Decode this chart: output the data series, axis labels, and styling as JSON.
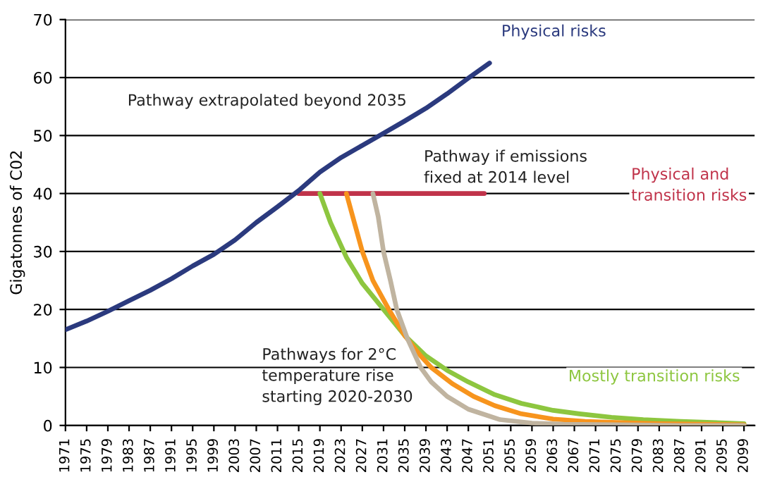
{
  "chart_data": {
    "type": "line",
    "ylabel": "Gigatonnes of C02",
    "xlim": [
      1971,
      2101
    ],
    "ylim": [
      0,
      70
    ],
    "xticks": [
      1971,
      1975,
      1979,
      1983,
      1987,
      1991,
      1995,
      1999,
      2003,
      2007,
      2011,
      2015,
      2019,
      2023,
      2027,
      2031,
      2035,
      2039,
      2043,
      2047,
      2051,
      2055,
      2059,
      2063,
      2067,
      2071,
      2075,
      2079,
      2083,
      2087,
      2091,
      2095,
      2099
    ],
    "yticks": [
      0,
      10,
      20,
      30,
      40,
      50,
      60,
      70
    ],
    "grid": "y",
    "legend": false,
    "marker": "none",
    "line_style": "solid",
    "series": [
      {
        "name": "Physical risks",
        "color": "#2b3a7e",
        "x": [
          1971,
          1975,
          1979,
          1983,
          1987,
          1991,
          1995,
          1999,
          2003,
          2007,
          2011,
          2015,
          2019,
          2023,
          2027,
          2031,
          2035,
          2039,
          2043,
          2047,
          2051
        ],
        "values": [
          16.5,
          18,
          19.7,
          21.5,
          23.3,
          25.3,
          27.5,
          29.5,
          32,
          35,
          37.7,
          40.5,
          43.7,
          46.2,
          48.3,
          50.4,
          52.5,
          54.7,
          57.2,
          59.9,
          62.5
        ]
      },
      {
        "name": "Physical and\ntransition risks",
        "color": "#c0334a",
        "x": [
          2015,
          2050
        ],
        "values": [
          40,
          40
        ]
      },
      {
        "name": "Mostly transition risks",
        "color": "#8dc63f",
        "x": [
          2019,
          2021,
          2024,
          2027,
          2031,
          2035,
          2039,
          2043,
          2047,
          2052,
          2057,
          2063,
          2068,
          2074,
          2080,
          2087,
          2093,
          2099
        ],
        "values": [
          40,
          35,
          29,
          24.5,
          20,
          15.5,
          12,
          9.5,
          7.5,
          5.3,
          3.8,
          2.6,
          2,
          1.4,
          1,
          0.7,
          0.5,
          0.3
        ]
      },
      {
        "color": "#f7941d",
        "x": [
          2024,
          2025.5,
          2027,
          2029,
          2032,
          2035,
          2038,
          2040,
          2044,
          2048,
          2052,
          2057,
          2063,
          2069,
          2075,
          2083,
          2091,
          2099
        ],
        "values": [
          40,
          35,
          30,
          25,
          20,
          15.5,
          12,
          10,
          7.2,
          5,
          3.4,
          2,
          1.1,
          0.7,
          0.5,
          0.3,
          0.2,
          0.1
        ]
      },
      {
        "color": "#c0b4a0",
        "x": [
          2029,
          2030,
          2031,
          2032.3,
          2033.5,
          2035.5,
          2038,
          2040,
          2043,
          2047,
          2053,
          2059,
          2065,
          2075,
          2087,
          2099
        ],
        "values": [
          40,
          36,
          30,
          25,
          20,
          15,
          10,
          7.5,
          5,
          2.8,
          1,
          0.4,
          0.2,
          0.1,
          0,
          0
        ]
      }
    ],
    "annotations": [
      "Pathway extrapolated beyond 2035",
      "Pathway if emissions\nfixed at 2014 level",
      "Pathways for 2°C\ntemperature rise\nstarting 2020-2030"
    ]
  }
}
